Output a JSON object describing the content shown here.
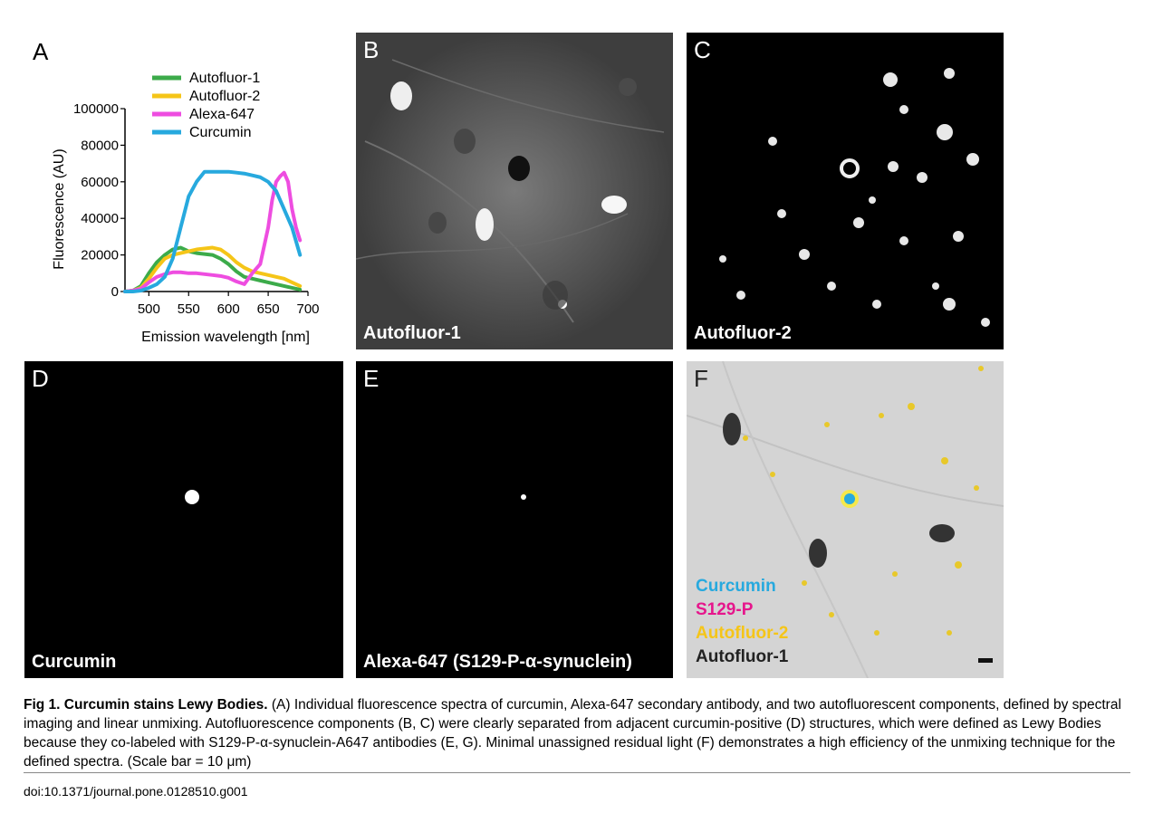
{
  "panels": {
    "A": {
      "letter": "A"
    },
    "B": {
      "letter": "B",
      "label": "Autofluor-1"
    },
    "C": {
      "letter": "C",
      "label": "Autofluor-2"
    },
    "D": {
      "letter": "D",
      "label": "Curcumin"
    },
    "E": {
      "letter": "E",
      "label": "Alexa-647 (S129-P-α-synuclein)"
    },
    "F": {
      "letter": "F",
      "legend": [
        "Curcumin",
        "S129-P",
        "Autofluor-2",
        "Autofluor-1"
      ]
    }
  },
  "colors": {
    "autofluor1": "#3cab4a",
    "autofluor2": "#f5c518",
    "alexa647": "#ee4de0",
    "curcumin": "#27a9de",
    "s129p": "#e6168c",
    "autofluor1_text": "#222222"
  },
  "chart_data": {
    "type": "line",
    "title": "",
    "xlabel": "Emission wavelength [nm]",
    "ylabel": "Fluorescence (AU)",
    "xlim": [
      470,
      700
    ],
    "ylim": [
      0,
      100000
    ],
    "xticks": [
      500,
      550,
      600,
      650,
      700
    ],
    "yticks": [
      0,
      20000,
      40000,
      60000,
      80000,
      100000
    ],
    "legend_position": "top-right",
    "series": [
      {
        "name": "Autofluor-1",
        "color": "#3cab4a",
        "x": [
          470,
          480,
          490,
          500,
          510,
          520,
          530,
          540,
          550,
          560,
          570,
          580,
          590,
          600,
          610,
          620,
          630,
          640,
          650,
          660,
          670,
          680,
          690
        ],
        "y": [
          0,
          500,
          3000,
          10000,
          16000,
          20000,
          23000,
          24000,
          22000,
          21000,
          20500,
          20000,
          18000,
          15000,
          11000,
          8000,
          7000,
          6000,
          5000,
          4000,
          3000,
          2000,
          1000
        ]
      },
      {
        "name": "Autofluor-2",
        "color": "#f5c518",
        "x": [
          470,
          480,
          490,
          500,
          510,
          520,
          530,
          540,
          550,
          560,
          570,
          580,
          590,
          600,
          610,
          620,
          630,
          640,
          650,
          660,
          670,
          680,
          690
        ],
        "y": [
          0,
          500,
          2000,
          7000,
          13000,
          18000,
          20000,
          21000,
          22000,
          23000,
          23500,
          24000,
          23000,
          20000,
          16000,
          13000,
          11000,
          10000,
          9000,
          8000,
          7000,
          5000,
          3000
        ]
      },
      {
        "name": "Alexa-647",
        "color": "#ee4de0",
        "x": [
          470,
          480,
          490,
          500,
          510,
          520,
          530,
          540,
          550,
          560,
          570,
          580,
          590,
          600,
          610,
          620,
          630,
          640,
          650,
          655,
          660,
          665,
          670,
          675,
          680,
          685,
          690
        ],
        "y": [
          0,
          500,
          1500,
          5000,
          8000,
          9500,
          10500,
          10500,
          10000,
          10000,
          9500,
          9000,
          8500,
          7500,
          5500,
          4000,
          10000,
          15000,
          35000,
          50000,
          60000,
          63000,
          65000,
          60000,
          45000,
          35000,
          28000
        ]
      },
      {
        "name": "Curcumin",
        "color": "#27a9de",
        "x": [
          470,
          480,
          490,
          500,
          510,
          520,
          530,
          540,
          550,
          560,
          570,
          580,
          590,
          600,
          610,
          620,
          630,
          640,
          650,
          660,
          670,
          680,
          690
        ],
        "y": [
          0,
          0,
          500,
          2000,
          4000,
          8000,
          18000,
          35000,
          52000,
          60000,
          65500,
          65500,
          65500,
          65500,
          65000,
          64500,
          63500,
          62500,
          60000,
          55000,
          45000,
          35000,
          20000
        ]
      }
    ]
  },
  "caption": {
    "fig_label": "Fig 1. Curcumin stains Lewy Bodies.",
    "text": " (A) Individual fluorescence spectra of curcumin, Alexa-647 secondary antibody, and two autofluorescent components, defined by spectral imaging and linear unmixing. Autofluorescence components (B, C) were clearly separated from adjacent curcumin-positive (D) structures, which were defined as Lewy Bodies because they co-labeled with S129-P-α-synuclein-A647 antibodies (E, G). Minimal unassigned residual light (F) demonstrates a high efficiency of the unmixing technique for the defined spectra. (Scale bar = 10 μm)"
  },
  "doi": "doi:10.1371/journal.pone.0128510.g001"
}
